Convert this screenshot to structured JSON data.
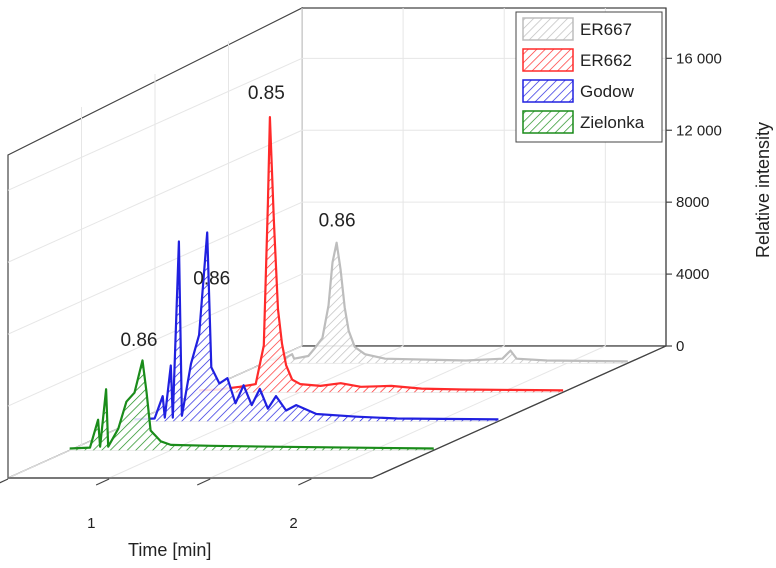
{
  "chart_data": {
    "type": "line",
    "title": "",
    "xlabel": "Time [min]",
    "zlabel": "Relative intensity",
    "x_ticks": [
      1,
      2
    ],
    "z_ticks": [
      "0",
      "4000",
      "8000",
      "12 000",
      "16 000"
    ],
    "x_range": [
      0.5,
      2.3
    ],
    "z_range": [
      0,
      18800
    ],
    "legend_position": "top-right",
    "grid": true,
    "series": [
      {
        "name": "ER667",
        "color": "#bdbdbd",
        "peak_label": "0.86",
        "label_x": 0.86,
        "label_y": 7600,
        "points": [
          [
            0.5,
            150
          ],
          [
            0.6,
            250
          ],
          [
            0.64,
            500
          ],
          [
            0.65,
            250
          ],
          [
            0.72,
            400
          ],
          [
            0.75,
            800
          ],
          [
            0.79,
            1400
          ],
          [
            0.82,
            3200
          ],
          [
            0.84,
            5600
          ],
          [
            0.86,
            6700
          ],
          [
            0.88,
            5200
          ],
          [
            0.9,
            3100
          ],
          [
            0.92,
            1800
          ],
          [
            0.95,
            900
          ],
          [
            1.0,
            500
          ],
          [
            1.1,
            250
          ],
          [
            1.3,
            200
          ],
          [
            1.5,
            150
          ],
          [
            1.68,
            250
          ],
          [
            1.72,
            700
          ],
          [
            1.75,
            250
          ],
          [
            1.9,
            150
          ],
          [
            2.3,
            100
          ]
        ]
      },
      {
        "name": "ER662",
        "color": "#ff2a2a",
        "peak_label": "0.85",
        "label_x": 0.83,
        "label_y": 16300,
        "points": [
          [
            0.5,
            100
          ],
          [
            0.6,
            150
          ],
          [
            0.7,
            300
          ],
          [
            0.78,
            450
          ],
          [
            0.82,
            2600
          ],
          [
            0.84,
            10500
          ],
          [
            0.85,
            15300
          ],
          [
            0.87,
            9500
          ],
          [
            0.89,
            4600
          ],
          [
            0.91,
            2700
          ],
          [
            0.93,
            1500
          ],
          [
            0.96,
            700
          ],
          [
            1.0,
            450
          ],
          [
            1.1,
            350
          ],
          [
            1.2,
            500
          ],
          [
            1.3,
            300
          ],
          [
            1.45,
            350
          ],
          [
            1.6,
            200
          ],
          [
            1.8,
            150
          ],
          [
            2.3,
            100
          ]
        ]
      },
      {
        "name": "Godow",
        "color": "#2020e0",
        "peak_label": "0.86",
        "label_x": 0.88,
        "label_y": 7600,
        "points": [
          [
            0.5,
            100
          ],
          [
            0.6,
            150
          ],
          [
            0.64,
            1400
          ],
          [
            0.65,
            200
          ],
          [
            0.68,
            3100
          ],
          [
            0.69,
            200
          ],
          [
            0.72,
            10000
          ],
          [
            0.735,
            300
          ],
          [
            0.78,
            3200
          ],
          [
            0.82,
            4800
          ],
          [
            0.86,
            10500
          ],
          [
            0.88,
            3000
          ],
          [
            0.92,
            2100
          ],
          [
            0.96,
            2400
          ],
          [
            1.0,
            1000
          ],
          [
            1.04,
            2000
          ],
          [
            1.08,
            900
          ],
          [
            1.12,
            1800
          ],
          [
            1.16,
            700
          ],
          [
            1.2,
            1400
          ],
          [
            1.25,
            600
          ],
          [
            1.3,
            900
          ],
          [
            1.4,
            400
          ],
          [
            1.6,
            250
          ],
          [
            1.8,
            150
          ],
          [
            2.3,
            100
          ]
        ]
      },
      {
        "name": "Zielonka",
        "color": "#1a8c1a",
        "peak_label": "0.86",
        "label_x": 0.84,
        "label_y": 5800,
        "points": [
          [
            0.5,
            100
          ],
          [
            0.6,
            150
          ],
          [
            0.64,
            1700
          ],
          [
            0.65,
            200
          ],
          [
            0.68,
            3400
          ],
          [
            0.69,
            200
          ],
          [
            0.74,
            1200
          ],
          [
            0.78,
            2700
          ],
          [
            0.82,
            3200
          ],
          [
            0.86,
            5000
          ],
          [
            0.88,
            3200
          ],
          [
            0.9,
            1100
          ],
          [
            0.95,
            500
          ],
          [
            1.0,
            300
          ],
          [
            1.2,
            250
          ],
          [
            1.5,
            200
          ],
          [
            2.3,
            100
          ]
        ]
      }
    ]
  }
}
